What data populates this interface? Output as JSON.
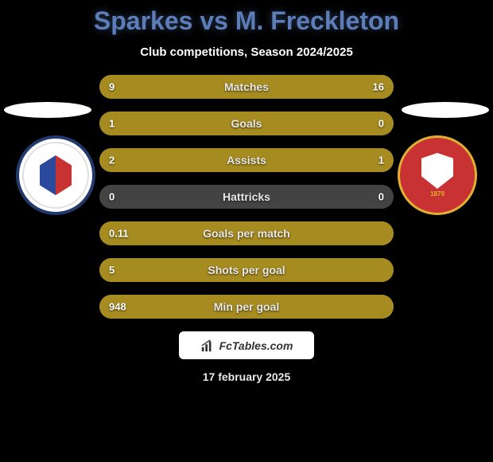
{
  "title": "Sparkes vs M. Freckleton",
  "subtitle": "Club competitions, Season 2024/2025",
  "stats": [
    {
      "label": "Matches",
      "left_val": "9",
      "right_val": "16",
      "left_pct": 36,
      "right_pct": 64
    },
    {
      "label": "Goals",
      "left_val": "1",
      "right_val": "0",
      "left_pct": 100,
      "right_pct": 0
    },
    {
      "label": "Assists",
      "left_val": "2",
      "right_val": "1",
      "left_pct": 67,
      "right_pct": 33
    },
    {
      "label": "Hattricks",
      "left_val": "0",
      "right_val": "0",
      "left_pct": 0,
      "right_pct": 0
    },
    {
      "label": "Goals per match",
      "left_val": "0.11",
      "right_val": "",
      "left_pct": 100,
      "right_pct": 0
    },
    {
      "label": "Shots per goal",
      "left_val": "5",
      "right_val": "",
      "left_pct": 100,
      "right_pct": 0
    },
    {
      "label": "Min per goal",
      "left_val": "948",
      "right_val": "",
      "left_pct": 100,
      "right_pct": 0
    }
  ],
  "colors": {
    "title": "#5d7db8",
    "bar_background": "#434343",
    "bar_fill": "#a58b20",
    "page_background": "#000000",
    "text": "#ffffff"
  },
  "watermark": "FcTables.com",
  "date": "17 february 2025"
}
